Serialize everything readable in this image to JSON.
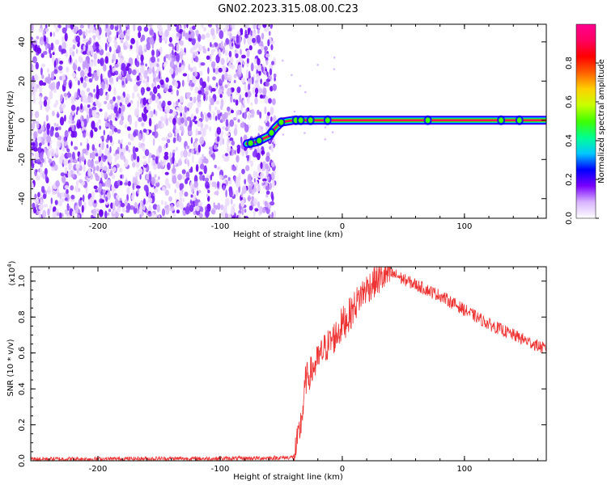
{
  "title": "GN02.2023.315.08.00.C23",
  "chart_data": [
    {
      "type": "heatmap",
      "xlabel": "Height of straight line (km)",
      "ylabel": "Frequency (Hz)",
      "xlim": [
        -255,
        167
      ],
      "ylim": [
        -50,
        49
      ],
      "xticks": [
        -200,
        -100,
        0,
        100
      ],
      "yticks": [
        -40,
        -20,
        0,
        20,
        40
      ],
      "noise_region_x": [
        -255,
        -55
      ],
      "ridge": {
        "x": [
          -78,
          -70,
          -60,
          -55,
          -50,
          -40,
          -30,
          -20,
          0,
          50,
          100,
          167
        ],
        "freq": [
          -12,
          -11,
          -8,
          -4,
          -1,
          0,
          0,
          0,
          0,
          0,
          0,
          0
        ]
      },
      "colorbar": {
        "label": "Normalized spectral amplitude",
        "ticks": [
          "0.0",
          "0.2",
          "0.4",
          "0.6",
          "0.8"
        ],
        "range": [
          0,
          1
        ],
        "colormap": [
          "#ffffff",
          "#d8b4ff",
          "#7a00ff",
          "#0000ff",
          "#00c8ff",
          "#00ff90",
          "#40ff00",
          "#c8ff00",
          "#ffd000",
          "#ff6000",
          "#ff0000",
          "#ff0060",
          "#ff0090"
        ]
      }
    },
    {
      "type": "line",
      "xlabel": "Height of straight line (km)",
      "ylabel": "SNR (10 * v/v)",
      "multiplier": "(x10^4)",
      "xlim": [
        -255,
        167
      ],
      "ylim": [
        0,
        1.08
      ],
      "xticks": [
        -200,
        -100,
        0,
        100
      ],
      "yticks": [
        "0.0",
        "0.2",
        "0.4",
        "0.6",
        "0.8",
        "1.0"
      ],
      "color": "#ee3333",
      "series": [
        {
          "x": [
            -255,
            -200,
            -150,
            -100,
            -60,
            -45,
            -40,
            -38,
            -35,
            -32,
            -30,
            -25,
            -20,
            -15,
            -10,
            -5,
            0,
            5,
            10,
            15,
            20,
            25,
            30,
            35,
            40,
            45,
            50,
            60,
            70,
            80,
            90,
            100,
            110,
            120,
            130,
            140,
            150,
            160,
            167
          ],
          "values": [
            0.01,
            0.01,
            0.012,
            0.012,
            0.015,
            0.018,
            0.02,
            0.06,
            0.16,
            0.3,
            0.45,
            0.5,
            0.56,
            0.62,
            0.66,
            0.7,
            0.76,
            0.8,
            0.86,
            0.92,
            0.96,
            0.99,
            1.01,
            1.03,
            1.04,
            1.03,
            1.01,
            0.98,
            0.95,
            0.92,
            0.88,
            0.84,
            0.8,
            0.76,
            0.73,
            0.7,
            0.67,
            0.64,
            0.62
          ]
        }
      ]
    }
  ]
}
